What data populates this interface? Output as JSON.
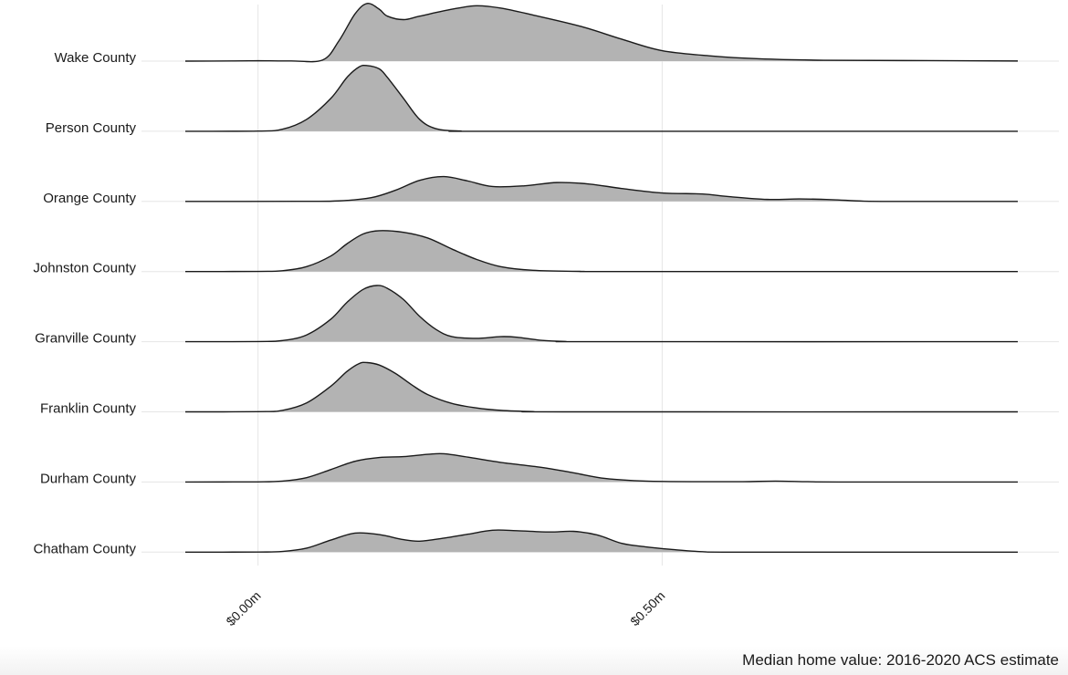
{
  "chart_data": {
    "type": "ridgeline",
    "x_ticks": [
      {
        "value": 0.0,
        "label": "$0.00m"
      },
      {
        "value": 0.5,
        "label": "$0.50m"
      }
    ],
    "xlim": [
      -0.09,
      0.94
    ],
    "grid": true,
    "fill_color": "#b3b3b3",
    "line_color": "#1a1a1a",
    "grid_color": "#e5e5e5",
    "series": [
      {
        "name": "Wake County",
        "peak_height": 1.58,
        "density": [
          [
            -0.09,
            0
          ],
          [
            -0.03,
            0.003
          ],
          [
            0.0,
            0.006
          ],
          [
            0.04,
            0.003
          ],
          [
            0.08,
            0.02
          ],
          [
            0.1,
            0.35
          ],
          [
            0.12,
            0.82
          ],
          [
            0.135,
            1.0
          ],
          [
            0.15,
            0.9
          ],
          [
            0.16,
            0.78
          ],
          [
            0.18,
            0.72
          ],
          [
            0.2,
            0.78
          ],
          [
            0.24,
            0.9
          ],
          [
            0.27,
            0.96
          ],
          [
            0.3,
            0.92
          ],
          [
            0.34,
            0.8
          ],
          [
            0.4,
            0.6
          ],
          [
            0.45,
            0.38
          ],
          [
            0.5,
            0.18
          ],
          [
            0.56,
            0.09
          ],
          [
            0.62,
            0.04
          ],
          [
            0.7,
            0.015
          ],
          [
            0.8,
            0.01
          ],
          [
            0.94,
            0.002
          ]
        ]
      },
      {
        "name": "Person County",
        "peak_height": 1.8,
        "density": [
          [
            -0.09,
            0
          ],
          [
            0.0,
            0.003
          ],
          [
            0.03,
            0.03
          ],
          [
            0.06,
            0.18
          ],
          [
            0.09,
            0.5
          ],
          [
            0.11,
            0.82
          ],
          [
            0.125,
            0.98
          ],
          [
            0.135,
            1.0
          ],
          [
            0.15,
            0.95
          ],
          [
            0.16,
            0.82
          ],
          [
            0.18,
            0.5
          ],
          [
            0.2,
            0.18
          ],
          [
            0.22,
            0.04
          ],
          [
            0.25,
            0.004
          ],
          [
            0.3,
            0
          ],
          [
            0.94,
            0
          ]
        ]
      },
      {
        "name": "Orange County",
        "peak_height": 0.68,
        "density": [
          [
            -0.09,
            0
          ],
          [
            0.05,
            0.004
          ],
          [
            0.1,
            0.02
          ],
          [
            0.14,
            0.15
          ],
          [
            0.17,
            0.45
          ],
          [
            0.2,
            0.85
          ],
          [
            0.23,
            1.0
          ],
          [
            0.26,
            0.82
          ],
          [
            0.29,
            0.6
          ],
          [
            0.33,
            0.63
          ],
          [
            0.37,
            0.76
          ],
          [
            0.41,
            0.7
          ],
          [
            0.45,
            0.52
          ],
          [
            0.5,
            0.34
          ],
          [
            0.55,
            0.3
          ],
          [
            0.58,
            0.2
          ],
          [
            0.63,
            0.08
          ],
          [
            0.67,
            0.1
          ],
          [
            0.71,
            0.07
          ],
          [
            0.75,
            0.01
          ],
          [
            0.8,
            0
          ],
          [
            0.94,
            0
          ]
        ]
      },
      {
        "name": "Johnston County",
        "peak_height": 1.12,
        "density": [
          [
            -0.09,
            0
          ],
          [
            0.0,
            0.004
          ],
          [
            0.03,
            0.02
          ],
          [
            0.06,
            0.12
          ],
          [
            0.09,
            0.38
          ],
          [
            0.11,
            0.68
          ],
          [
            0.13,
            0.92
          ],
          [
            0.15,
            1.0
          ],
          [
            0.18,
            0.96
          ],
          [
            0.21,
            0.82
          ],
          [
            0.24,
            0.55
          ],
          [
            0.27,
            0.3
          ],
          [
            0.3,
            0.12
          ],
          [
            0.34,
            0.03
          ],
          [
            0.4,
            0.004
          ],
          [
            0.45,
            0
          ],
          [
            0.94,
            0
          ]
        ]
      },
      {
        "name": "Granville County",
        "peak_height": 1.54,
        "density": [
          [
            -0.09,
            0
          ],
          [
            0.0,
            0.003
          ],
          [
            0.03,
            0.02
          ],
          [
            0.06,
            0.12
          ],
          [
            0.09,
            0.4
          ],
          [
            0.11,
            0.7
          ],
          [
            0.13,
            0.93
          ],
          [
            0.147,
            1.0
          ],
          [
            0.16,
            0.95
          ],
          [
            0.18,
            0.75
          ],
          [
            0.2,
            0.45
          ],
          [
            0.22,
            0.22
          ],
          [
            0.24,
            0.09
          ],
          [
            0.27,
            0.06
          ],
          [
            0.3,
            0.09
          ],
          [
            0.32,
            0.08
          ],
          [
            0.35,
            0.025
          ],
          [
            0.38,
            0.004
          ],
          [
            0.42,
            0
          ],
          [
            0.94,
            0
          ]
        ]
      },
      {
        "name": "Franklin County",
        "peak_height": 1.35,
        "density": [
          [
            -0.09,
            0
          ],
          [
            0.0,
            0.003
          ],
          [
            0.03,
            0.03
          ],
          [
            0.06,
            0.18
          ],
          [
            0.09,
            0.52
          ],
          [
            0.11,
            0.82
          ],
          [
            0.125,
            0.98
          ],
          [
            0.135,
            1.0
          ],
          [
            0.15,
            0.95
          ],
          [
            0.17,
            0.78
          ],
          [
            0.19,
            0.55
          ],
          [
            0.21,
            0.35
          ],
          [
            0.24,
            0.17
          ],
          [
            0.27,
            0.08
          ],
          [
            0.3,
            0.03
          ],
          [
            0.34,
            0.005
          ],
          [
            0.38,
            0
          ],
          [
            0.94,
            0
          ]
        ]
      },
      {
        "name": "Durham County",
        "peak_height": 0.79,
        "density": [
          [
            -0.09,
            0
          ],
          [
            0.0,
            0.004
          ],
          [
            0.03,
            0.03
          ],
          [
            0.06,
            0.15
          ],
          [
            0.09,
            0.43
          ],
          [
            0.12,
            0.72
          ],
          [
            0.15,
            0.85
          ],
          [
            0.18,
            0.88
          ],
          [
            0.21,
            0.96
          ],
          [
            0.23,
            0.98
          ],
          [
            0.26,
            0.86
          ],
          [
            0.3,
            0.68
          ],
          [
            0.35,
            0.51
          ],
          [
            0.39,
            0.32
          ],
          [
            0.43,
            0.12
          ],
          [
            0.48,
            0.03
          ],
          [
            0.55,
            0.01
          ],
          [
            0.6,
            0.01
          ],
          [
            0.64,
            0.03
          ],
          [
            0.68,
            0.01
          ],
          [
            0.72,
            0
          ],
          [
            0.94,
            0
          ]
        ]
      },
      {
        "name": "Chatham County",
        "peak_height": 0.6,
        "density": [
          [
            -0.09,
            0
          ],
          [
            0.0,
            0.005
          ],
          [
            0.03,
            0.03
          ],
          [
            0.06,
            0.18
          ],
          [
            0.09,
            0.55
          ],
          [
            0.12,
            0.87
          ],
          [
            0.15,
            0.8
          ],
          [
            0.18,
            0.57
          ],
          [
            0.2,
            0.5
          ],
          [
            0.23,
            0.64
          ],
          [
            0.26,
            0.82
          ],
          [
            0.29,
            1.0
          ],
          [
            0.32,
            0.98
          ],
          [
            0.36,
            0.92
          ],
          [
            0.39,
            0.95
          ],
          [
            0.42,
            0.78
          ],
          [
            0.45,
            0.4
          ],
          [
            0.48,
            0.24
          ],
          [
            0.51,
            0.13
          ],
          [
            0.55,
            0.02
          ],
          [
            0.6,
            0
          ],
          [
            0.94,
            0
          ]
        ]
      }
    ]
  },
  "caption": "Median home value: 2016-2020 ACS estimate"
}
